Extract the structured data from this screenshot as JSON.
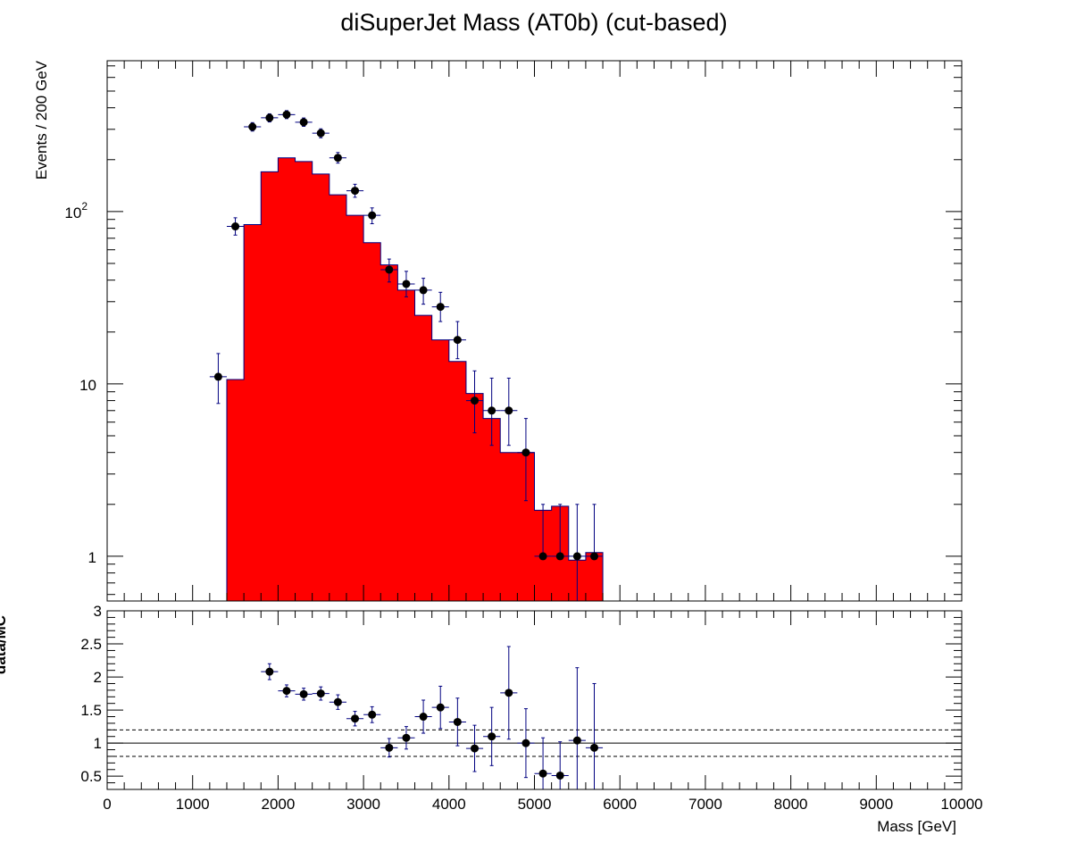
{
  "chart_data": [
    {
      "type": "bar",
      "panel": "top",
      "title": "diSuperJet Mass (AT0b) (cut-based)",
      "ylabel": "Events / 200 GeV",
      "xlim": [
        0,
        10000
      ],
      "ylim": [
        0.55,
        750
      ],
      "log_y": true,
      "y_ticks": [
        {
          "value": 1,
          "label": "1"
        },
        {
          "value": 10,
          "label": "10"
        },
        {
          "value": 100,
          "label": "10",
          "sup": "2"
        }
      ],
      "colors": {
        "mc_fill": "#ff0000",
        "mc_line": "#000080",
        "data_points": "#000000",
        "errors": "#000080"
      },
      "mc": {
        "bin_edges": [
          1400,
          1600,
          1800,
          2000,
          2200,
          2400,
          2600,
          2800,
          3000,
          3200,
          3400,
          3600,
          3800,
          4000,
          4200,
          4400,
          4600,
          4800,
          5000,
          5200,
          5400,
          5600,
          5800
        ],
        "values": [
          10.6,
          84,
          170,
          205,
          195,
          165,
          125,
          95,
          66,
          49,
          35,
          25,
          18,
          13.5,
          8.8,
          6.3,
          4.0,
          4.0,
          1.85,
          1.95,
          0.95,
          1.05
        ]
      },
      "data": [
        {
          "x": 1300,
          "y": 11,
          "lo": 3.3,
          "hi": 4.0
        },
        {
          "x": 1500,
          "y": 82,
          "lo": 9,
          "hi": 10
        },
        {
          "x": 1700,
          "y": 310,
          "lo": 17,
          "hi": 18
        },
        {
          "x": 1900,
          "y": 350,
          "lo": 19,
          "hi": 19
        },
        {
          "x": 2100,
          "y": 365,
          "lo": 19,
          "hi": 20
        },
        {
          "x": 2300,
          "y": 330,
          "lo": 18,
          "hi": 19
        },
        {
          "x": 2500,
          "y": 285,
          "lo": 17,
          "hi": 17
        },
        {
          "x": 2700,
          "y": 205,
          "lo": 14,
          "hi": 15
        },
        {
          "x": 2900,
          "y": 132,
          "lo": 11,
          "hi": 12
        },
        {
          "x": 3100,
          "y": 95,
          "lo": 10,
          "hi": 10
        },
        {
          "x": 3300,
          "y": 46,
          "lo": 7,
          "hi": 7
        },
        {
          "x": 3500,
          "y": 38,
          "lo": 6,
          "hi": 7
        },
        {
          "x": 3700,
          "y": 35,
          "lo": 6,
          "hi": 6
        },
        {
          "x": 3900,
          "y": 28,
          "lo": 5,
          "hi": 6
        },
        {
          "x": 4100,
          "y": 18,
          "lo": 4,
          "hi": 5
        },
        {
          "x": 4300,
          "y": 8,
          "lo": 2.8,
          "hi": 3.9
        },
        {
          "x": 4500,
          "y": 7,
          "lo": 2.6,
          "hi": 3.8
        },
        {
          "x": 4700,
          "y": 7,
          "lo": 2.6,
          "hi": 3.8
        },
        {
          "x": 4900,
          "y": 4,
          "lo": 1.9,
          "hi": 2.3
        },
        {
          "x": 5100,
          "y": 1,
          "lo": 0.0,
          "hi": 1.0
        },
        {
          "x": 5300,
          "y": 1,
          "lo": 0.0,
          "hi": 1.0
        },
        {
          "x": 5500,
          "y": 1,
          "lo": 0.83,
          "hi": 1.0
        },
        {
          "x": 5700,
          "y": 1,
          "lo": 0.0,
          "hi": 1.0
        }
      ]
    },
    {
      "type": "scatter",
      "panel": "bottom",
      "ylabel": "data/MC",
      "xlabel": "Mass [GeV]",
      "xlim": [
        0,
        10000
      ],
      "ylim": [
        0.3,
        3.0
      ],
      "x_ticks": [
        {
          "value": 0,
          "label": "0"
        },
        {
          "value": 1000,
          "label": "1000"
        },
        {
          "value": 2000,
          "label": "2000"
        },
        {
          "value": 3000,
          "label": "3000"
        },
        {
          "value": 4000,
          "label": "4000"
        },
        {
          "value": 5000,
          "label": "5000"
        },
        {
          "value": 6000,
          "label": "6000"
        },
        {
          "value": 7000,
          "label": "7000"
        },
        {
          "value": 8000,
          "label": "8000"
        },
        {
          "value": 9000,
          "label": "9000"
        },
        {
          "value": 10000,
          "label": "10000"
        }
      ],
      "y_ticks": [
        {
          "value": 0.5,
          "label": "0.5"
        },
        {
          "value": 1,
          "label": "1"
        },
        {
          "value": 1.5,
          "label": "1.5"
        },
        {
          "value": 2,
          "label": "2"
        },
        {
          "value": 2.5,
          "label": "2.5"
        },
        {
          "value": 3,
          "label": "3"
        }
      ],
      "reference_lines": [
        {
          "y": 1.0,
          "style": "solid"
        },
        {
          "y": 1.2,
          "style": "dashed"
        },
        {
          "y": 0.8,
          "style": "dashed"
        }
      ],
      "data": [
        {
          "x": 1900,
          "y": 2.08,
          "err": 0.12
        },
        {
          "x": 2100,
          "y": 1.79,
          "err": 0.09
        },
        {
          "x": 2300,
          "y": 1.74,
          "err": 0.09
        },
        {
          "x": 2500,
          "y": 1.75,
          "err": 0.1
        },
        {
          "x": 2700,
          "y": 1.62,
          "err": 0.11
        },
        {
          "x": 2900,
          "y": 1.37,
          "err": 0.11
        },
        {
          "x": 3100,
          "y": 1.43,
          "err": 0.12
        },
        {
          "x": 3300,
          "y": 0.93,
          "err": 0.14
        },
        {
          "x": 3500,
          "y": 1.08,
          "err": 0.17
        },
        {
          "x": 3700,
          "y": 1.4,
          "err": 0.25
        },
        {
          "x": 3900,
          "y": 1.54,
          "err": 0.32
        },
        {
          "x": 4100,
          "y": 1.32,
          "err": 0.36
        },
        {
          "x": 4300,
          "y": 0.92,
          "err": 0.35
        },
        {
          "x": 4500,
          "y": 1.1,
          "err": 0.44
        },
        {
          "x": 4700,
          "y": 1.76,
          "err": 0.7
        },
        {
          "x": 4900,
          "y": 1.0,
          "err": 0.52
        },
        {
          "x": 5100,
          "y": 0.54,
          "err": 0.54
        },
        {
          "x": 5300,
          "y": 0.51,
          "err": 0.51
        },
        {
          "x": 5500,
          "y": 1.04,
          "err": 1.1
        },
        {
          "x": 5700,
          "y": 0.93,
          "err": 0.97
        }
      ]
    }
  ]
}
